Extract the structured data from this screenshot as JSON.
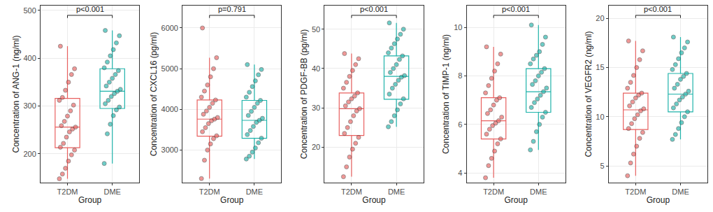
{
  "chart_data": [
    {
      "type": "box",
      "y_label": "Concentration of ANG-1 (ng/ml)",
      "x_label": "Group",
      "annotation": "p<0.001",
      "categories": [
        "T2DM",
        "DME"
      ],
      "ylim": [
        140,
        510
      ],
      "yticks": [
        200,
        300,
        400,
        500
      ],
      "grid": true,
      "series": [
        {
          "name": "T2DM",
          "color": "#E8605F",
          "lowerfence": 148,
          "q1": 213,
          "median": 256,
          "q3": 316,
          "upperfence": 425,
          "points": [
            148,
            158,
            170,
            185,
            198,
            208,
            214,
            222,
            235,
            246,
            252,
            256,
            259,
            268,
            279,
            290,
            302,
            312,
            318,
            333,
            350,
            366,
            378,
            425
          ]
        },
        {
          "name": "DME",
          "color": "#1FB3AA",
          "lowerfence": 180,
          "q1": 295,
          "median": 331,
          "q3": 378,
          "upperfence": 458,
          "points": [
            180,
            242,
            262,
            280,
            292,
            298,
            305,
            312,
            320,
            326,
            331,
            335,
            342,
            350,
            358,
            366,
            374,
            380,
            392,
            405,
            418,
            432,
            447,
            458
          ]
        }
      ]
    },
    {
      "type": "box",
      "y_label": "Concentration of CXCL16 (pg/ml)",
      "x_label": "Group",
      "annotation": "p=0.791",
      "categories": [
        "T2DM",
        "DME"
      ],
      "ylim": [
        2200,
        6550
      ],
      "yticks": [
        3000,
        4000,
        5000,
        6000
      ],
      "grid": true,
      "series": [
        {
          "name": "T2DM",
          "color": "#E8605F",
          "lowerfence": 2300,
          "q1": 3340,
          "median": 3760,
          "q3": 4230,
          "upperfence": 5270,
          "points": [
            2300,
            2750,
            3000,
            3150,
            3280,
            3350,
            3450,
            3550,
            3650,
            3720,
            3760,
            3800,
            3880,
            3960,
            4050,
            4150,
            4230,
            4300,
            4450,
            4600,
            4800,
            5000,
            5270,
            6000
          ]
        },
        {
          "name": "DME",
          "color": "#1FB3AA",
          "lowerfence": 2780,
          "q1": 3290,
          "median": 3730,
          "q3": 4220,
          "upperfence": 5100,
          "points": [
            2780,
            2850,
            2950,
            3050,
            3180,
            3290,
            3380,
            3480,
            3580,
            3680,
            3730,
            3780,
            3850,
            3950,
            4050,
            4150,
            4220,
            4300,
            4420,
            4560,
            4700,
            4850,
            4980,
            5100
          ]
        }
      ]
    },
    {
      "type": "box",
      "y_label": "Concentration of PDGF-BB (pg/ml)",
      "x_label": "Group",
      "annotation": "p<0.001",
      "categories": [
        "T2DM",
        "DME"
      ],
      "ylim": [
        11,
        56
      ],
      "yticks": [
        20,
        30,
        40,
        50
      ],
      "grid": true,
      "series": [
        {
          "name": "T2DM",
          "color": "#E8605F",
          "lowerfence": 12.5,
          "q1": 23,
          "median": 29.8,
          "q3": 33.8,
          "upperfence": 43.8,
          "points": [
            12.5,
            15,
            17.5,
            19.5,
            21,
            22.5,
            23.5,
            25,
            26.5,
            28,
            29.2,
            29.8,
            30.5,
            31.5,
            32.3,
            33,
            33.8,
            35,
            36.5,
            38,
            39.5,
            41,
            42.5,
            43.8
          ]
        },
        {
          "name": "DME",
          "color": "#1FB3AA",
          "lowerfence": 25.2,
          "q1": 32.2,
          "median": 38,
          "q3": 43.2,
          "upperfence": 51.6,
          "points": [
            25.2,
            26.5,
            28,
            29.5,
            31,
            32.3,
            33.5,
            35,
            36,
            37,
            37.8,
            38.2,
            39,
            40,
            41,
            42.3,
            43.2,
            44,
            45.2,
            46.3,
            47.5,
            48.7,
            50,
            51.6
          ]
        }
      ]
    },
    {
      "type": "box",
      "y_label": "Concentration of TIMP-1 (ng/ml)",
      "x_label": "Group",
      "annotation": "p<0.001",
      "categories": [
        "T2DM",
        "DME"
      ],
      "ylim": [
        3.6,
        10.9
      ],
      "yticks": [
        4,
        6,
        8,
        10
      ],
      "grid": true,
      "series": [
        {
          "name": "T2DM",
          "color": "#E8605F",
          "lowerfence": 3.8,
          "q1": 5.4,
          "median": 6.15,
          "q3": 7.1,
          "upperfence": 9.2,
          "points": [
            3.8,
            4.3,
            4.6,
            4.9,
            5.2,
            5.4,
            5.6,
            5.8,
            5.95,
            6.05,
            6.15,
            6.3,
            6.45,
            6.6,
            6.8,
            7,
            7.1,
            7.3,
            7.6,
            7.9,
            8.2,
            8.5,
            8.9,
            9.2
          ]
        },
        {
          "name": "DME",
          "color": "#1FB3AA",
          "lowerfence": 4.95,
          "q1": 6.5,
          "median": 7.35,
          "q3": 8.3,
          "upperfence": 10.1,
          "points": [
            4.95,
            5.3,
            5.7,
            6,
            6.3,
            6.5,
            6.7,
            6.9,
            7.05,
            7.2,
            7.35,
            7.5,
            7.65,
            7.8,
            8,
            8.15,
            8.3,
            8.5,
            8.7,
            8.85,
            9,
            9.3,
            9.6,
            10.1
          ]
        }
      ]
    },
    {
      "type": "box",
      "y_label": "Concentration of VEGFR2 (ng/ml)",
      "x_label": "Group",
      "annotation": "p<0.001",
      "categories": [
        "T2DM",
        "DME"
      ],
      "ylim": [
        3.3,
        21.3
      ],
      "yticks": [
        5,
        10,
        15,
        20
      ],
      "grid": true,
      "series": [
        {
          "name": "T2DM",
          "color": "#E8605F",
          "lowerfence": 4,
          "q1": 8.7,
          "median": 10.7,
          "q3": 12.4,
          "upperfence": 17.7,
          "points": [
            4,
            5.3,
            6.2,
            7,
            7.8,
            8.4,
            8.8,
            9.3,
            9.8,
            10.2,
            10.6,
            10.8,
            11.1,
            11.5,
            11.9,
            12.2,
            12.4,
            12.9,
            13.5,
            14.2,
            15,
            15.8,
            16.7,
            17.7
          ]
        },
        {
          "name": "DME",
          "color": "#1FB3AA",
          "lowerfence": 7.7,
          "q1": 10.5,
          "median": 12.3,
          "q3": 14.4,
          "upperfence": 18.1,
          "points": [
            7.7,
            8.2,
            8.8,
            9.4,
            10,
            10.5,
            10.9,
            11.3,
            11.7,
            12,
            12.3,
            12.6,
            12.9,
            13.3,
            13.8,
            14.1,
            14.4,
            14.8,
            15.3,
            15.9,
            16.5,
            17,
            17.6,
            18.1
          ]
        }
      ]
    }
  ]
}
